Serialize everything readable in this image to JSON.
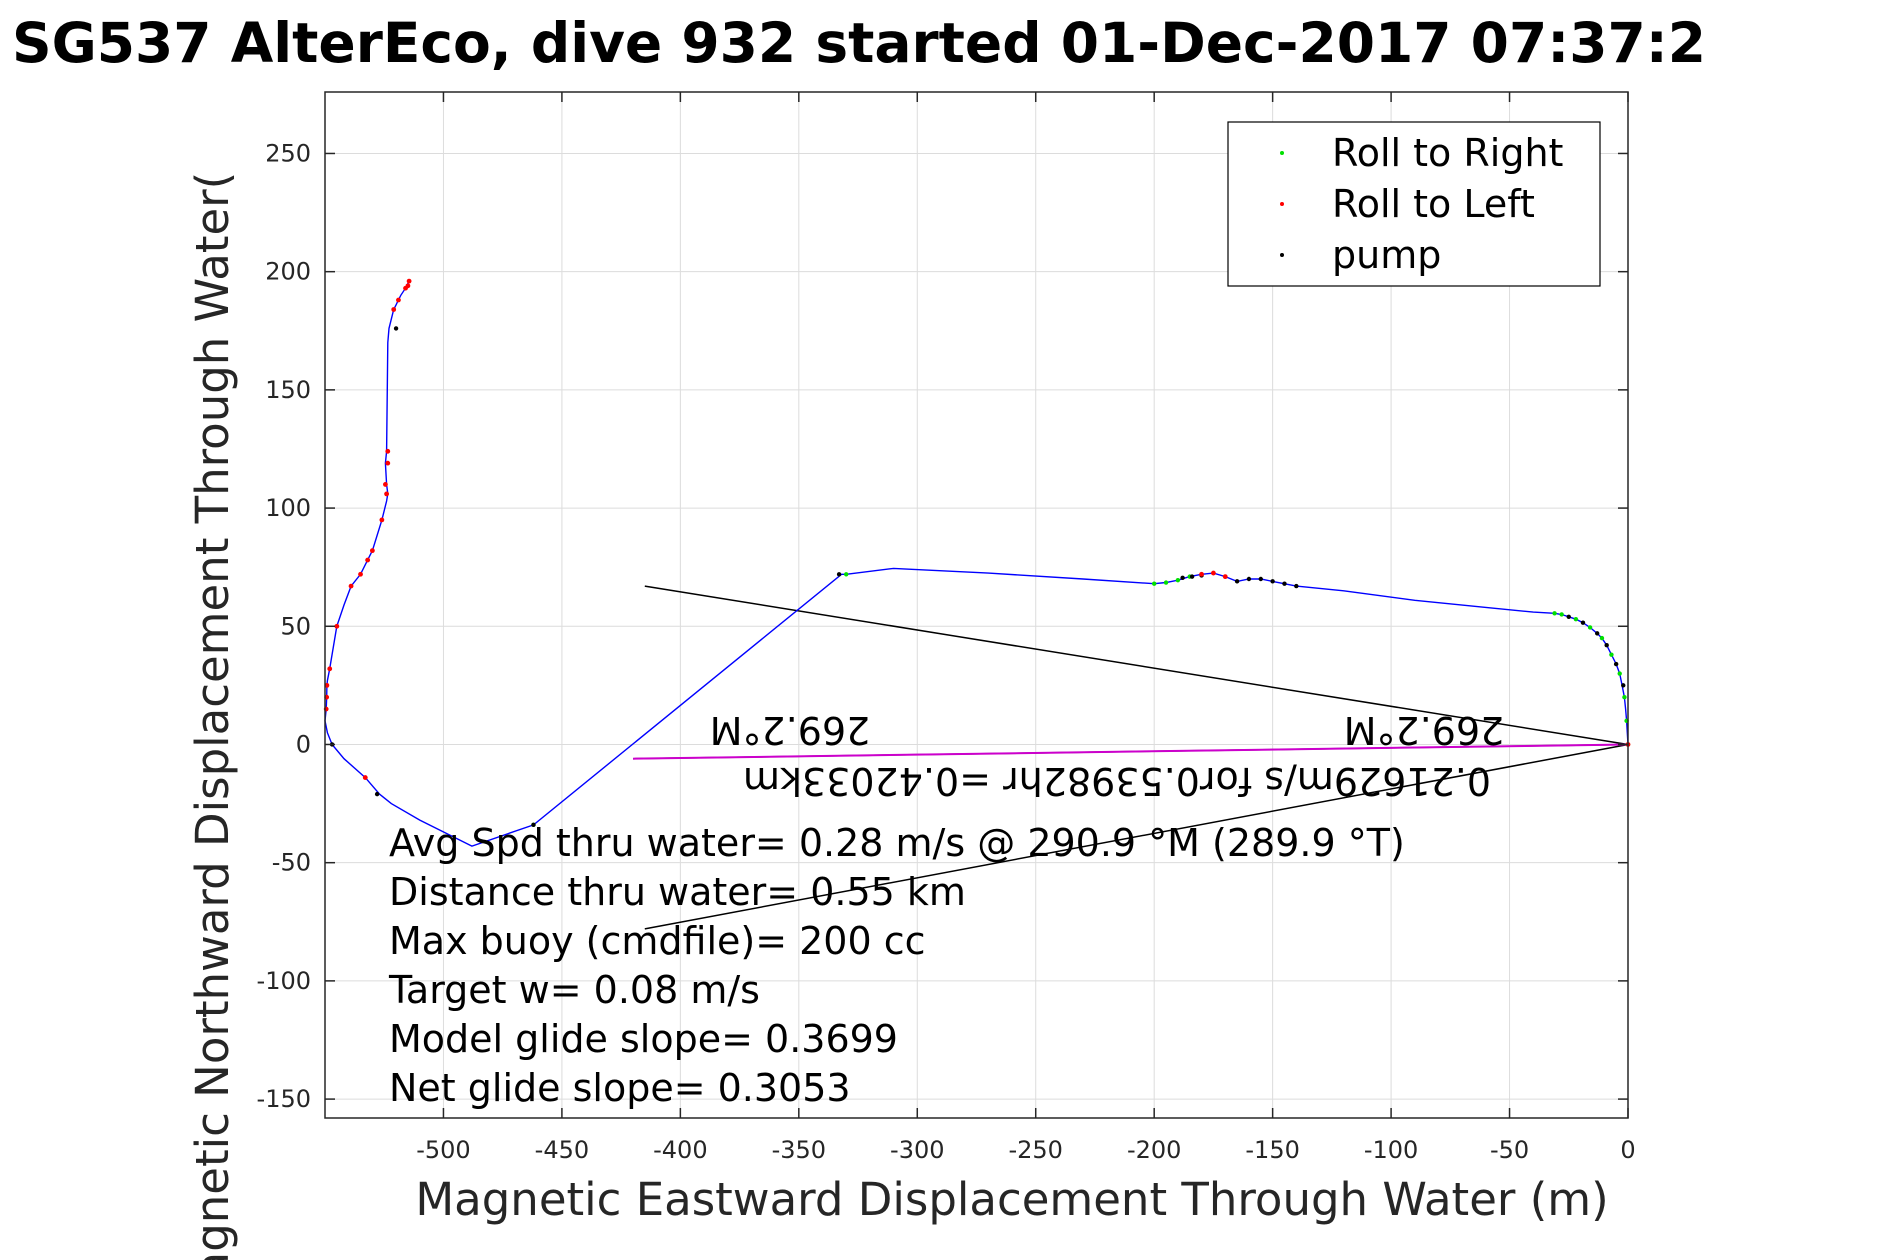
{
  "chart_data": {
    "type": "line",
    "title": "SG537 AlterEco, dive 932 started 01-Dec-2017 07:37:2",
    "xlabel": "Magnetic Eastward Displacement Through Water (m)",
    "ylabel": "Magnetic Northward Displacement Through Water(",
    "xlim": [
      -550,
      0
    ],
    "ylim": [
      -158,
      276
    ],
    "xticks": [
      "-500",
      "-450",
      "-400",
      "-350",
      "-300",
      "-250",
      "-200",
      "-150",
      "-100",
      "-50",
      "0"
    ],
    "xtick_values": [
      -500,
      -450,
      -400,
      -350,
      -300,
      -250,
      -200,
      -150,
      -100,
      -50,
      0
    ],
    "yticks": [
      "-150",
      "-100",
      "-50",
      "0",
      "50",
      "100",
      "150",
      "200",
      "250"
    ],
    "ytick_values": [
      -150,
      -100,
      -50,
      0,
      50,
      100,
      150,
      200,
      250
    ],
    "grid": true,
    "legend_placement": "top-right",
    "colors": {
      "track": "#0000ff",
      "roll_right": "#00e000",
      "roll_left": "#ff0000",
      "pump": "#000000",
      "current": "#cc00cc",
      "lines": "#000000",
      "grid": "#dcdcdc"
    },
    "legend": [
      {
        "label": "Roll to Right",
        "color": "#00e000"
      },
      {
        "label": "Roll to Left",
        "color": "#ff0000"
      },
      {
        "label": "pump",
        "color": "#000000"
      }
    ],
    "track": {
      "x": [
        0,
        -0.3,
        -0.6,
        -1,
        -1.5,
        -2.5,
        -3.5,
        -5,
        -7,
        -9,
        -11,
        -13,
        -16,
        -19,
        -22,
        -25,
        -28,
        -31,
        -40,
        -60,
        -90,
        -120,
        -140,
        -150,
        -155,
        -160,
        -165,
        -170,
        -175,
        -180,
        -185,
        -190,
        -195,
        -200,
        -230,
        -270,
        -310,
        -330,
        -332,
        -462,
        -488,
        -510,
        -522,
        -527,
        -533,
        -542,
        -547,
        -549,
        -550,
        -549.5,
        -549.3,
        -549.2,
        -549,
        -548,
        -545,
        -542,
        -539,
        -535,
        -532,
        -530,
        -526,
        -524,
        -523.5,
        -524,
        -524.5,
        -524,
        -523.5,
        -523,
        -521,
        -520,
        -519,
        -518,
        -516,
        -515.5,
        -515,
        -514.5
      ],
      "y": [
        0,
        5,
        10,
        15,
        20,
        25,
        30,
        34,
        38,
        42,
        45,
        47,
        49.5,
        51.5,
        53,
        54,
        55,
        55.5,
        56,
        58,
        61,
        65,
        67,
        69,
        70,
        70,
        69,
        71,
        72.5,
        72,
        71,
        69.5,
        68.5,
        68,
        70,
        72.5,
        74.5,
        72,
        72,
        -34,
        -43,
        -32,
        -25,
        -21,
        -14,
        -6,
        0,
        5,
        10,
        15,
        20,
        25,
        27,
        32,
        50,
        59,
        67,
        72,
        78,
        82,
        95,
        103,
        106,
        110,
        119,
        124,
        170,
        176,
        184,
        186,
        188,
        190,
        193,
        194,
        195,
        196
      ]
    },
    "roll_right_points": {
      "x": [
        0,
        -0.6,
        -1.5,
        -3.5,
        -7,
        -11,
        -16,
        -22,
        -28,
        -31,
        -330,
        -462,
        -200,
        -195,
        -190,
        -185
      ],
      "y": [
        0,
        10,
        20,
        30,
        38,
        45,
        49.5,
        53,
        55,
        55.5,
        72,
        -34,
        68,
        68.5,
        69.5,
        71
      ]
    },
    "roll_left_points": {
      "x": [
        0,
        -170,
        -175,
        -180,
        -516,
        -519,
        -521,
        -524,
        -524.5,
        -523.5,
        -523.5,
        -526,
        -532,
        -535,
        -539,
        -545,
        -548,
        -549.2,
        -549.3,
        -549.5,
        -530,
        -533,
        -515,
        -514.5
      ],
      "y": [
        0,
        71,
        72.5,
        72,
        193,
        188,
        184,
        106,
        110,
        119,
        124,
        95,
        78,
        72,
        67,
        50,
        32,
        25,
        20,
        15,
        82,
        -14,
        194,
        196
      ]
    },
    "pump_points": {
      "x": [
        -528,
        -2,
        -5,
        -9,
        -13,
        -19,
        -25,
        -140,
        -145,
        -150,
        -155,
        -160,
        -165,
        -180,
        -184,
        -188,
        -333,
        -462,
        -520,
        -524,
        -547
      ],
      "y": [
        -21,
        25,
        34,
        42,
        47,
        51.5,
        54,
        67,
        68,
        69,
        70,
        70,
        69,
        71.5,
        71,
        70.5,
        72,
        -34,
        176,
        106,
        0
      ]
    },
    "avg_current_line": {
      "x": [
        0,
        -420
      ],
      "y": [
        0,
        -6
      ]
    },
    "heading_lines": [
      {
        "x": [
          0,
          -415
        ],
        "y": [
          0,
          67
        ]
      },
      {
        "x": [
          0,
          -415
        ],
        "y": [
          0,
          -78
        ]
      }
    ],
    "flipped_labels": {
      "heading_right": "269.2°M",
      "heading_left": "269.2°M",
      "current_summary": "0.21629m/s for0.53982hr =0.42033km"
    },
    "annotations": [
      "Avg Spd thru water=  0.28 m/s @ 290.9 °M (289.9 °T)",
      "Distance thru water=  0.55 km",
      "Max buoy (cmdfile)= 200 cc",
      "Target w= 0.08 m/s",
      "Model glide slope= 0.3699",
      "Net glide slope= 0.3053"
    ]
  }
}
